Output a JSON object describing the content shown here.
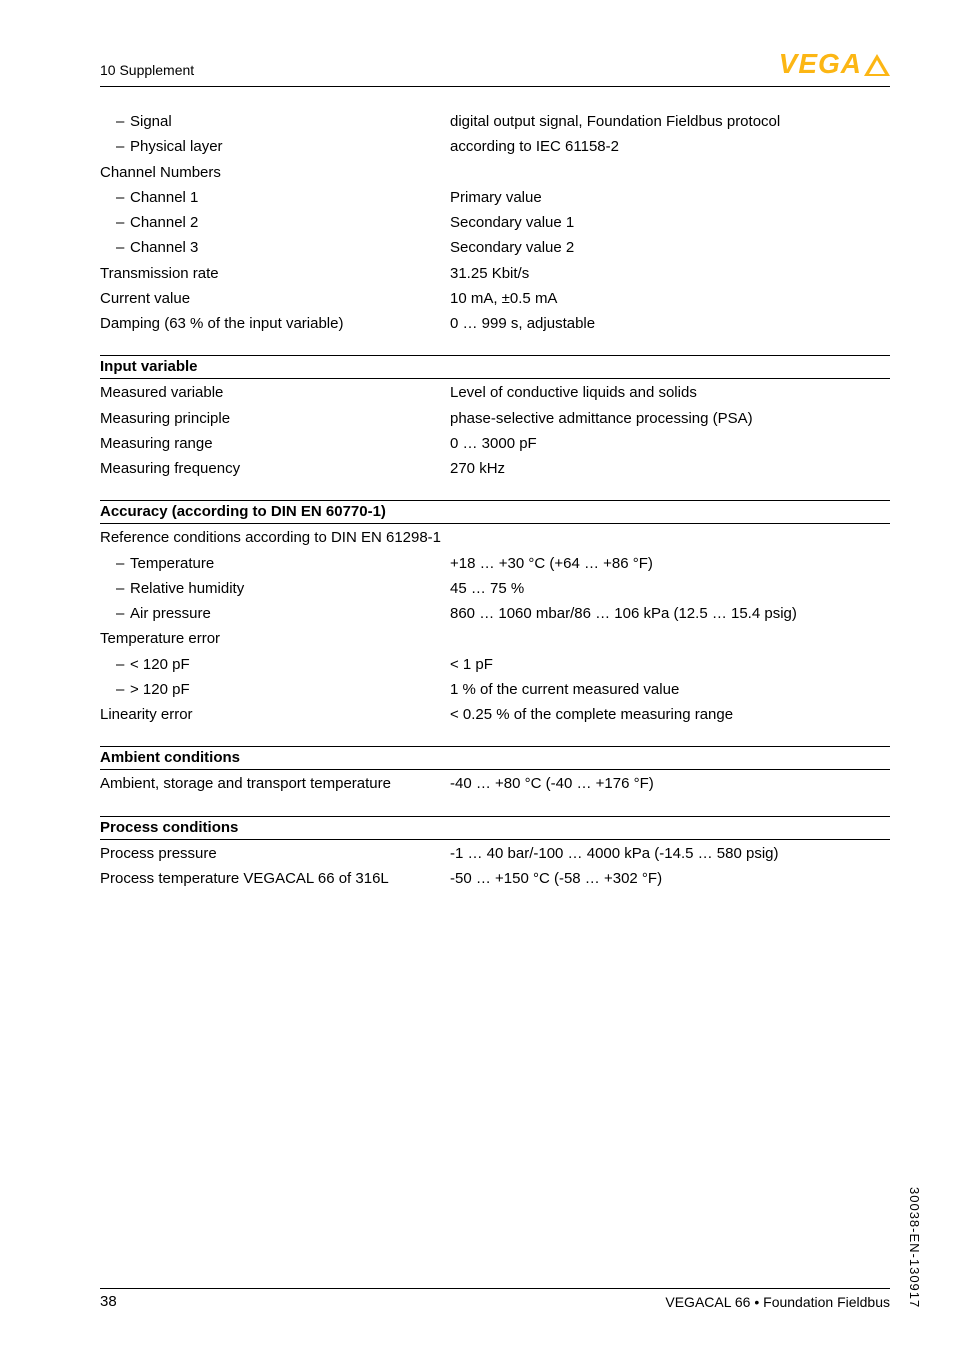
{
  "header": {
    "section_label": "10 Supplement",
    "logo_text": "VEGA"
  },
  "top_block": {
    "rows": [
      {
        "label": "Signal",
        "indent": true,
        "value": "digital output signal, Foundation Fieldbus protocol"
      },
      {
        "label": "Physical layer",
        "indent": true,
        "value": "according to IEC 61158-2"
      },
      {
        "label": "Channel Numbers",
        "indent": false,
        "value": ""
      },
      {
        "label": "Channel 1",
        "indent": true,
        "value": "Primary value"
      },
      {
        "label": "Channel 2",
        "indent": true,
        "value": "Secondary value 1"
      },
      {
        "label": "Channel 3",
        "indent": true,
        "value": "Secondary value 2"
      },
      {
        "label": "Transmission rate",
        "indent": false,
        "value": "31.25 Kbit/s"
      },
      {
        "label": "Current value",
        "indent": false,
        "value": "10 mA, ±0.5 mA"
      },
      {
        "label": "Damping (63 % of the input variable)",
        "indent": false,
        "value": "0 … 999 s, adjustable"
      }
    ]
  },
  "sections": [
    {
      "title": "Input variable",
      "rows": [
        {
          "label": "Measured variable",
          "indent": false,
          "value": "Level of conductive liquids and solids"
        },
        {
          "label": "Measuring principle",
          "indent": false,
          "value": "phase-selective admittance processing (PSA)"
        },
        {
          "label": "Measuring range",
          "indent": false,
          "value": "0 … 3000 pF"
        },
        {
          "label": "Measuring frequency",
          "indent": false,
          "value": "270 kHz"
        }
      ]
    },
    {
      "title": "Accuracy (according to DIN EN 60770-1)",
      "rows": [
        {
          "label": "Reference conditions according to DIN EN 61298-1",
          "indent": false,
          "value": ""
        },
        {
          "label": "Temperature",
          "indent": true,
          "value": "+18 … +30 °C (+64 … +86 °F)"
        },
        {
          "label": "Relative humidity",
          "indent": true,
          "value": "45 … 75 %"
        },
        {
          "label": "Air pressure",
          "indent": true,
          "value": "860 … 1060 mbar/86 … 106 kPa (12.5 … 15.4 psig)"
        },
        {
          "label": "Temperature error",
          "indent": false,
          "value": ""
        },
        {
          "label": "< 120 pF",
          "indent": true,
          "value": "< 1 pF"
        },
        {
          "label": "> 120 pF",
          "indent": true,
          "value": "1 % of the current measured value"
        },
        {
          "label": "Linearity error",
          "indent": false,
          "value": "< 0.25 % of the complete measuring range"
        }
      ]
    },
    {
      "title": "Ambient conditions",
      "rows": [
        {
          "label": "Ambient, storage and transport tempera­ture",
          "indent": false,
          "value": "-40 … +80 °C (-40 … +176 °F)"
        }
      ]
    },
    {
      "title": "Process conditions",
      "rows": [
        {
          "label": "Process pressure",
          "indent": false,
          "value": "-1 … 40 bar/-100 … 4000 kPa (-14.5 … 580 psig)"
        },
        {
          "label": "Process temperature VEGACAL 66 of 316L",
          "indent": false,
          "value": "-50 … +150 °C (-58 … +302 °F)"
        }
      ]
    }
  ],
  "footer": {
    "page": "38",
    "product": "VEGACAL 66 • Foundation Fieldbus",
    "side": "30038-EN-130917"
  },
  "colors": {
    "brand": "#fcb614",
    "text": "#000000",
    "rule": "#000000"
  }
}
